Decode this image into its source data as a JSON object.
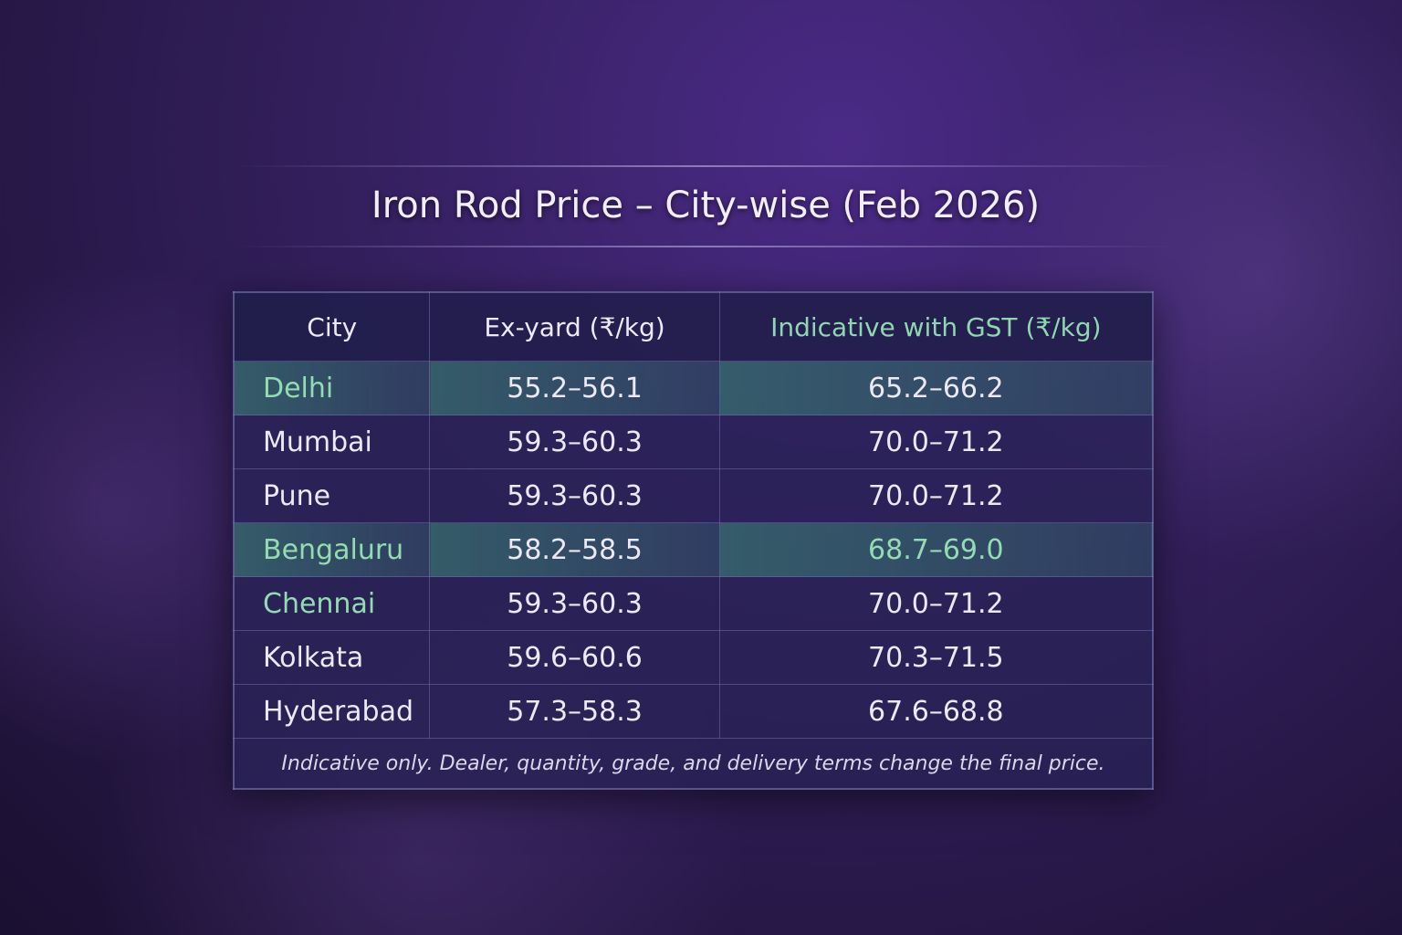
{
  "header": {
    "title": "Iron Rod Price – City-wise (Feb 2026)"
  },
  "table": {
    "columns": [
      "City",
      "Ex-yard (₹/kg)",
      "Indicative with GST (₹/kg)"
    ],
    "rows": [
      [
        "Delhi",
        "55.2–56.1",
        "65.2–66.2"
      ],
      [
        "Mumbai",
        "59.3–60.3",
        "70.0–71.2"
      ],
      [
        "Pune",
        "59.3–60.3",
        "70.0–71.2"
      ],
      [
        "Bengaluru",
        "58.2–58.5",
        "68.7–69.0"
      ],
      [
        "Chennai",
        "59.3–60.3",
        "70.0–71.2"
      ],
      [
        "Kolkata",
        "59.6–60.6",
        "70.3–71.5"
      ],
      [
        "Hyderabad",
        "57.3–58.3",
        "67.6–68.8"
      ]
    ],
    "footnote": "Indicative only. Dealer, quantity, grade, and delivery terms change the final price."
  }
}
